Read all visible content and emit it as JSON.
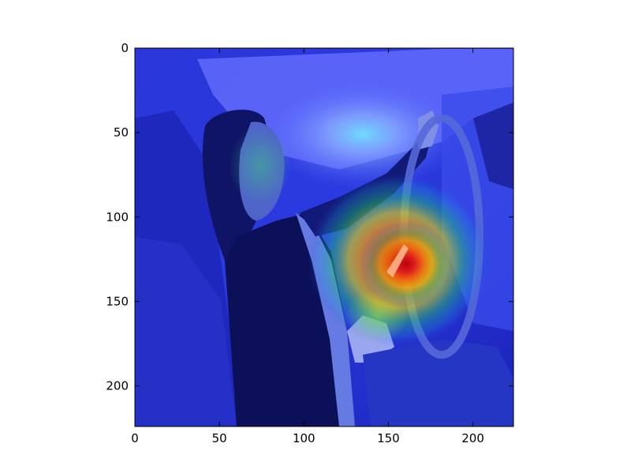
{
  "chart_data": {
    "type": "heatmap",
    "image_description_visible": false,
    "x_axis": {
      "min": 0,
      "max": 224,
      "ticks": [
        0,
        50,
        100,
        150,
        200
      ]
    },
    "y_axis": {
      "min": 0,
      "max": 224,
      "inverted": true,
      "ticks": [
        0,
        50,
        100,
        150,
        200
      ]
    },
    "hotspot": {
      "x": 150,
      "y": 130
    },
    "colormap": "jet"
  }
}
